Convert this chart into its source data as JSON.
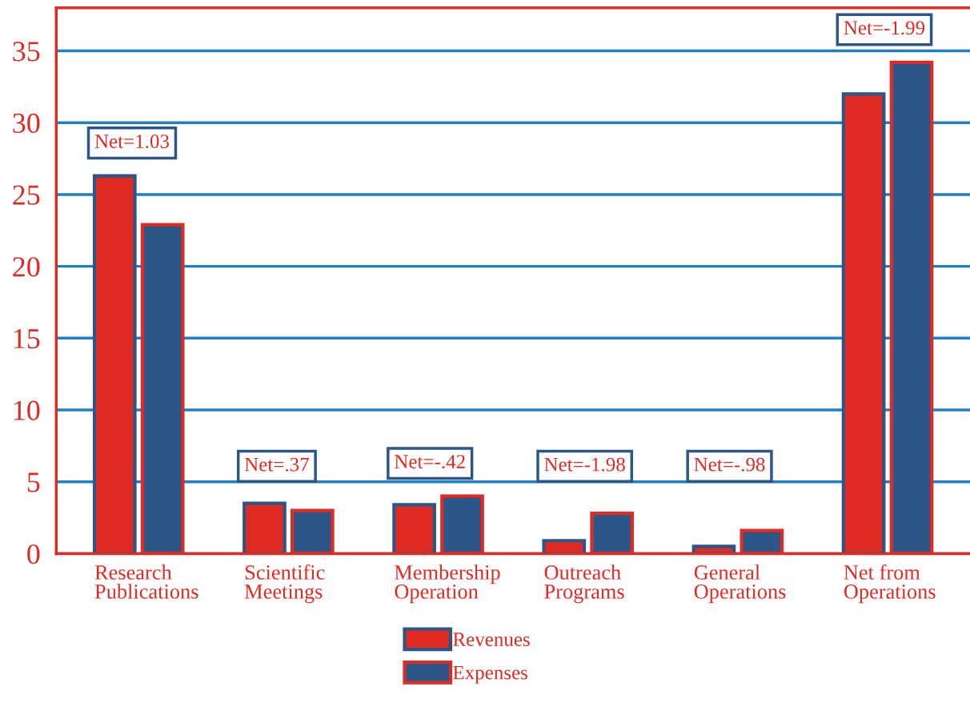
{
  "chart_data": {
    "type": "bar",
    "categories": [
      "Research\nPublications",
      "Scientific\nMeetings",
      "Membership\nOperation",
      "Outreach\nPrograms",
      "General\nOperations",
      "Net from\nOperations"
    ],
    "series": [
      {
        "name": "Revenues",
        "color": "#e02b25",
        "values": [
          26.3,
          3.5,
          3.4,
          0.9,
          0.5,
          32.0
        ]
      },
      {
        "name": "Expenses",
        "color": "#2c5687",
        "values": [
          22.9,
          3.0,
          4.0,
          2.8,
          1.6,
          34.2
        ]
      }
    ],
    "ylim": [
      0,
      38
    ],
    "yticks": [
      0,
      5,
      10,
      15,
      20,
      25,
      30,
      35
    ],
    "grid": "y",
    "legend": "bottom",
    "annotations": [
      "Net=1.03",
      "Net=.37",
      "Net=-.42",
      "Net=-1.98",
      "Net=-.98",
      "Net=-1.99"
    ]
  }
}
